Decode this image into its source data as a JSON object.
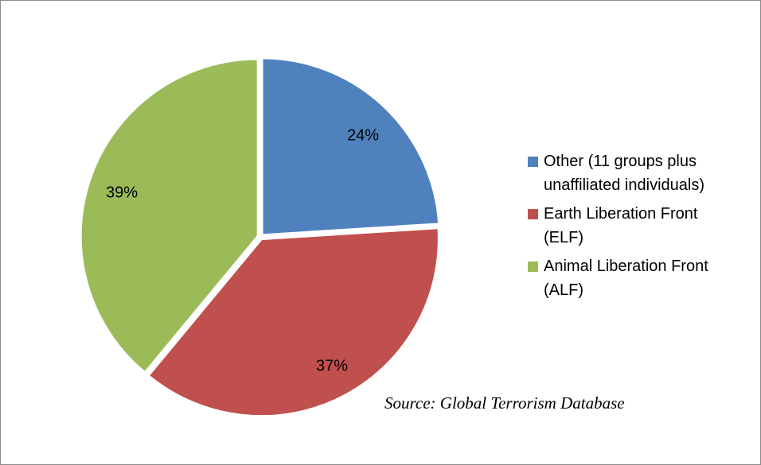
{
  "chart_data": {
    "type": "pie",
    "title": "",
    "categories": [
      "Other (11 groups plus unaffiliated individuals)",
      "Earth Liberation Front (ELF)",
      "Animal Liberation Front (ALF)"
    ],
    "values": [
      24,
      37,
      39
    ],
    "labels": [
      "24%",
      "37%",
      "39%"
    ],
    "colors": [
      "#4f81bd",
      "#c0504d",
      "#9bbb59"
    ],
    "legend_position": "right",
    "legend": [
      {
        "line1": "Other (11 groups plus",
        "line2": "unaffiliated individuals)"
      },
      {
        "line1": "Earth Liberation Front",
        "line2": "(ELF)"
      },
      {
        "line1": "Animal Liberation Front",
        "line2": "(ALF)"
      }
    ],
    "annotation": "Source: Global Terrorism Database"
  }
}
